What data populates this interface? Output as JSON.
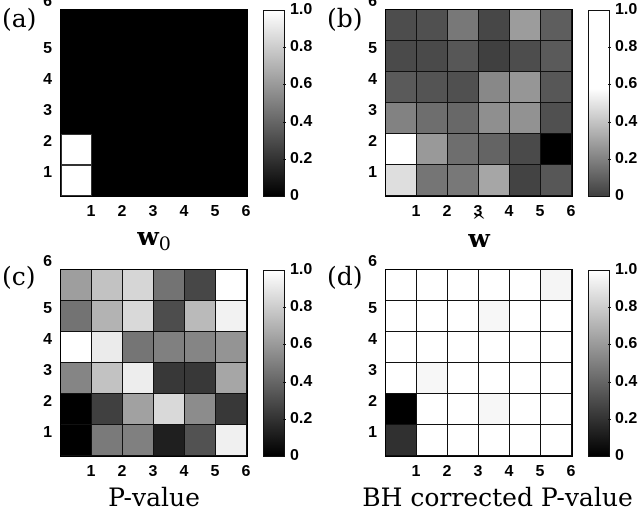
{
  "chart_data": [
    {
      "type": "heatmap",
      "panel": "(a)",
      "xlabel": "w0",
      "xlabel_main": "w",
      "xlabel_sub": "0",
      "x_ticks": [
        "1",
        "2",
        "3",
        "4",
        "5",
        "6"
      ],
      "y_ticks": [
        "1",
        "2",
        "3",
        "4",
        "5",
        "6"
      ],
      "colorbar_ticks": [
        "0",
        "0.2",
        "0.4",
        "0.6",
        "0.8",
        "1.0"
      ],
      "colorbar_range": [
        0,
        1
      ],
      "colormap": "gray",
      "rows_top_to_bottom": [
        [
          0,
          0,
          0,
          0,
          0,
          0
        ],
        [
          0,
          0,
          0,
          0,
          0,
          0
        ],
        [
          0,
          0,
          0,
          0,
          0,
          0
        ],
        [
          0,
          0,
          0,
          0,
          0,
          0
        ],
        [
          1,
          0,
          0,
          0,
          0,
          0
        ],
        [
          1,
          0,
          0,
          0,
          0,
          0
        ]
      ]
    },
    {
      "type": "heatmap",
      "panel": "(b)",
      "xlabel": "ŵ",
      "xlabel_main": "w",
      "x_ticks": [
        "1",
        "2",
        "3",
        "4",
        "5",
        "6"
      ],
      "y_ticks": [
        "1",
        "2",
        "3",
        "4",
        "5",
        "6"
      ],
      "colorbar_ticks": [
        "0",
        "0.2",
        "0.4",
        "0.6",
        "0.8",
        "1.0"
      ],
      "colorbar_range": [
        0,
        1
      ],
      "colormap": "gray (clipped: dark gray at 0, white above ~0.58)",
      "rows_top_to_bottom": [
        [
          0.04,
          0.05,
          0.17,
          0.02,
          0.28,
          0.09
        ],
        [
          0.03,
          0.03,
          0.07,
          0.0,
          0.04,
          0.08
        ],
        [
          0.08,
          0.06,
          0.05,
          0.22,
          0.26,
          0.07
        ],
        [
          0.2,
          0.14,
          0.12,
          0.24,
          0.25,
          0.05
        ],
        [
          0.58,
          0.27,
          0.14,
          0.11,
          0.03,
          -0.05
        ],
        [
          0.48,
          0.16,
          0.17,
          0.31,
          0.01,
          0.07
        ]
      ]
    },
    {
      "type": "heatmap",
      "panel": "(c)",
      "xlabel": "P-value",
      "x_ticks": [
        "1",
        "2",
        "3",
        "4",
        "5",
        "6"
      ],
      "y_ticks": [
        "1",
        "2",
        "3",
        "4",
        "5",
        "6"
      ],
      "colorbar_ticks": [
        "0",
        "0.2",
        "0.4",
        "0.6",
        "0.8",
        "1.0"
      ],
      "colorbar_range": [
        0,
        1
      ],
      "colormap": "gray",
      "rows_top_to_bottom": [
        [
          0.62,
          0.76,
          0.84,
          0.45,
          0.28,
          1.0
        ],
        [
          0.45,
          0.7,
          0.85,
          0.3,
          0.73,
          0.95
        ],
        [
          1.0,
          0.92,
          0.46,
          0.5,
          0.52,
          0.58
        ],
        [
          0.52,
          0.76,
          0.93,
          0.22,
          0.22,
          0.65
        ],
        [
          0.0,
          0.25,
          0.63,
          0.85,
          0.55,
          0.22
        ],
        [
          0.0,
          0.48,
          0.5,
          0.12,
          0.32,
          0.94
        ]
      ]
    },
    {
      "type": "heatmap",
      "panel": "(d)",
      "xlabel": "BH corrected P-value",
      "x_ticks": [
        "1",
        "2",
        "3",
        "4",
        "5",
        "6"
      ],
      "y_ticks": [
        "1",
        "2",
        "3",
        "4",
        "5",
        "6"
      ],
      "colorbar_ticks": [
        "0",
        "0.2",
        "0.4",
        "0.6",
        "0.8",
        "1.0"
      ],
      "colorbar_range": [
        0,
        1
      ],
      "colormap": "gray",
      "rows_top_to_bottom": [
        [
          1.0,
          1.0,
          1.0,
          1.0,
          1.0,
          0.96
        ],
        [
          1.0,
          1.0,
          1.0,
          0.97,
          1.0,
          1.0
        ],
        [
          1.0,
          1.0,
          1.0,
          1.0,
          1.0,
          1.0
        ],
        [
          1.0,
          0.97,
          1.0,
          1.0,
          1.0,
          1.0
        ],
        [
          0.0,
          1.0,
          1.0,
          0.97,
          1.0,
          1.0
        ],
        [
          0.19,
          1.0,
          1.0,
          1.0,
          1.0,
          1.0
        ]
      ]
    }
  ],
  "panels": {
    "a": {
      "label": "(a)",
      "xlabel_main": "w",
      "xlabel_sub": "0"
    },
    "b": {
      "label": "(b)",
      "xlabel_main": "w"
    },
    "c": {
      "label": "(c)",
      "xlabel": "P-value"
    },
    "d": {
      "label": "(d)",
      "xlabel": "BH corrected P-value"
    }
  },
  "ticks": {
    "axis": [
      "1",
      "2",
      "3",
      "4",
      "5",
      "6"
    ],
    "colorbar": [
      "0",
      "0.2",
      "0.4",
      "0.6",
      "0.8",
      "1.0"
    ]
  }
}
